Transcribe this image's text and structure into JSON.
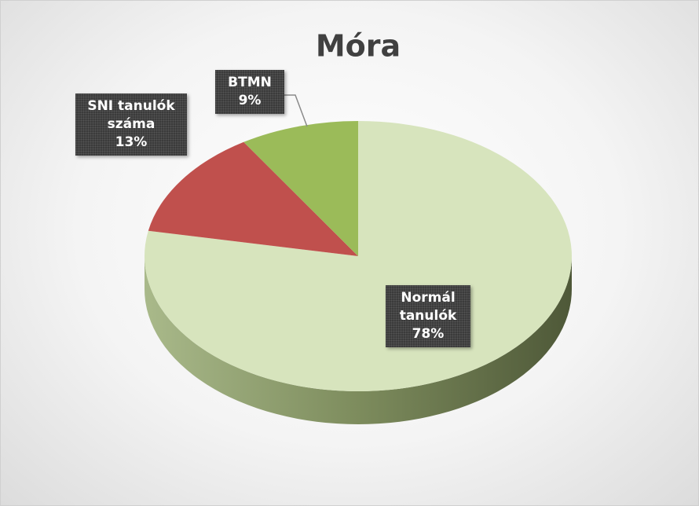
{
  "chart_data": {
    "type": "pie",
    "title": "Móra",
    "categories": [
      "Normál tanulók",
      "SNI tanulók száma",
      "BTMN"
    ],
    "values": [
      78,
      13,
      9
    ],
    "value_labels": [
      "78%",
      "13%",
      "9%"
    ],
    "colors": [
      "#d7e4bd",
      "#c0504d",
      "#9bbb59"
    ]
  }
}
